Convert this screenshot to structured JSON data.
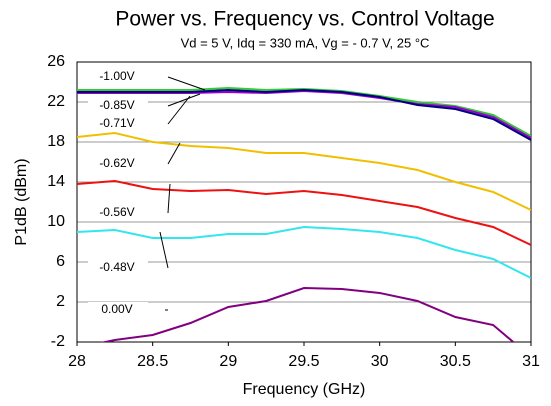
{
  "chart_data": {
    "type": "line",
    "title": "Power vs. Frequency vs. Control Voltage",
    "subtitle": "Vd = 5 V, Idq = 330 mA, Vg = - 0.7 V, 25 °C",
    "x_label": "Frequency (GHz)",
    "y_label": "P1dB (dBm)",
    "x": [
      28,
      28.25,
      28.5,
      28.75,
      29,
      29.25,
      29.5,
      29.75,
      30,
      30.25,
      30.5,
      30.75,
      31
    ],
    "xlim": [
      28,
      31
    ],
    "xticks": [
      28,
      28.5,
      29,
      29.5,
      30,
      30.5,
      31
    ],
    "ylim": [
      -2,
      26
    ],
    "yticks": [
      -2,
      2,
      6,
      10,
      14,
      18,
      22,
      26
    ],
    "grid": true,
    "series": [
      {
        "name": "-1.00V",
        "color": "#33cc33",
        "values": [
          23.2,
          23.2,
          23.2,
          23.2,
          23.4,
          23.2,
          23.3,
          23.1,
          22.6,
          22.0,
          21.6,
          20.7,
          18.6
        ]
      },
      {
        "name": "-0.85V",
        "color": "#9900cc",
        "values": [
          22.9,
          22.9,
          22.9,
          22.9,
          23.0,
          22.9,
          23.1,
          22.9,
          22.4,
          21.8,
          21.5,
          20.5,
          18.4
        ]
      },
      {
        "name": "-0.71V",
        "color": "#000080",
        "values": [
          23.0,
          23.0,
          23.0,
          23.0,
          23.2,
          23.0,
          23.2,
          23.0,
          22.5,
          21.7,
          21.3,
          20.3,
          18.2
        ]
      },
      {
        "name": "-0.62V",
        "color": "#f0c000",
        "values": [
          18.5,
          18.9,
          18.0,
          17.6,
          17.4,
          16.9,
          16.9,
          16.4,
          15.9,
          15.2,
          14.0,
          13.0,
          11.2
        ]
      },
      {
        "name": "-0.56V",
        "color": "#ee1111",
        "values": [
          13.8,
          14.1,
          13.3,
          13.1,
          13.2,
          12.8,
          13.1,
          12.7,
          12.1,
          11.5,
          10.4,
          9.5,
          7.7
        ]
      },
      {
        "name": "-0.48V",
        "color": "#33e6ee",
        "values": [
          9.0,
          9.2,
          8.4,
          8.4,
          8.8,
          8.8,
          9.5,
          9.3,
          9.0,
          8.4,
          7.2,
          6.3,
          4.4
        ]
      },
      {
        "name": "0.00V",
        "color": "#800080",
        "values": [
          -2.6,
          -1.8,
          -1.3,
          -0.1,
          1.5,
          2.1,
          3.4,
          3.3,
          2.9,
          2.1,
          0.5,
          -0.3,
          -3.5
        ]
      }
    ]
  }
}
